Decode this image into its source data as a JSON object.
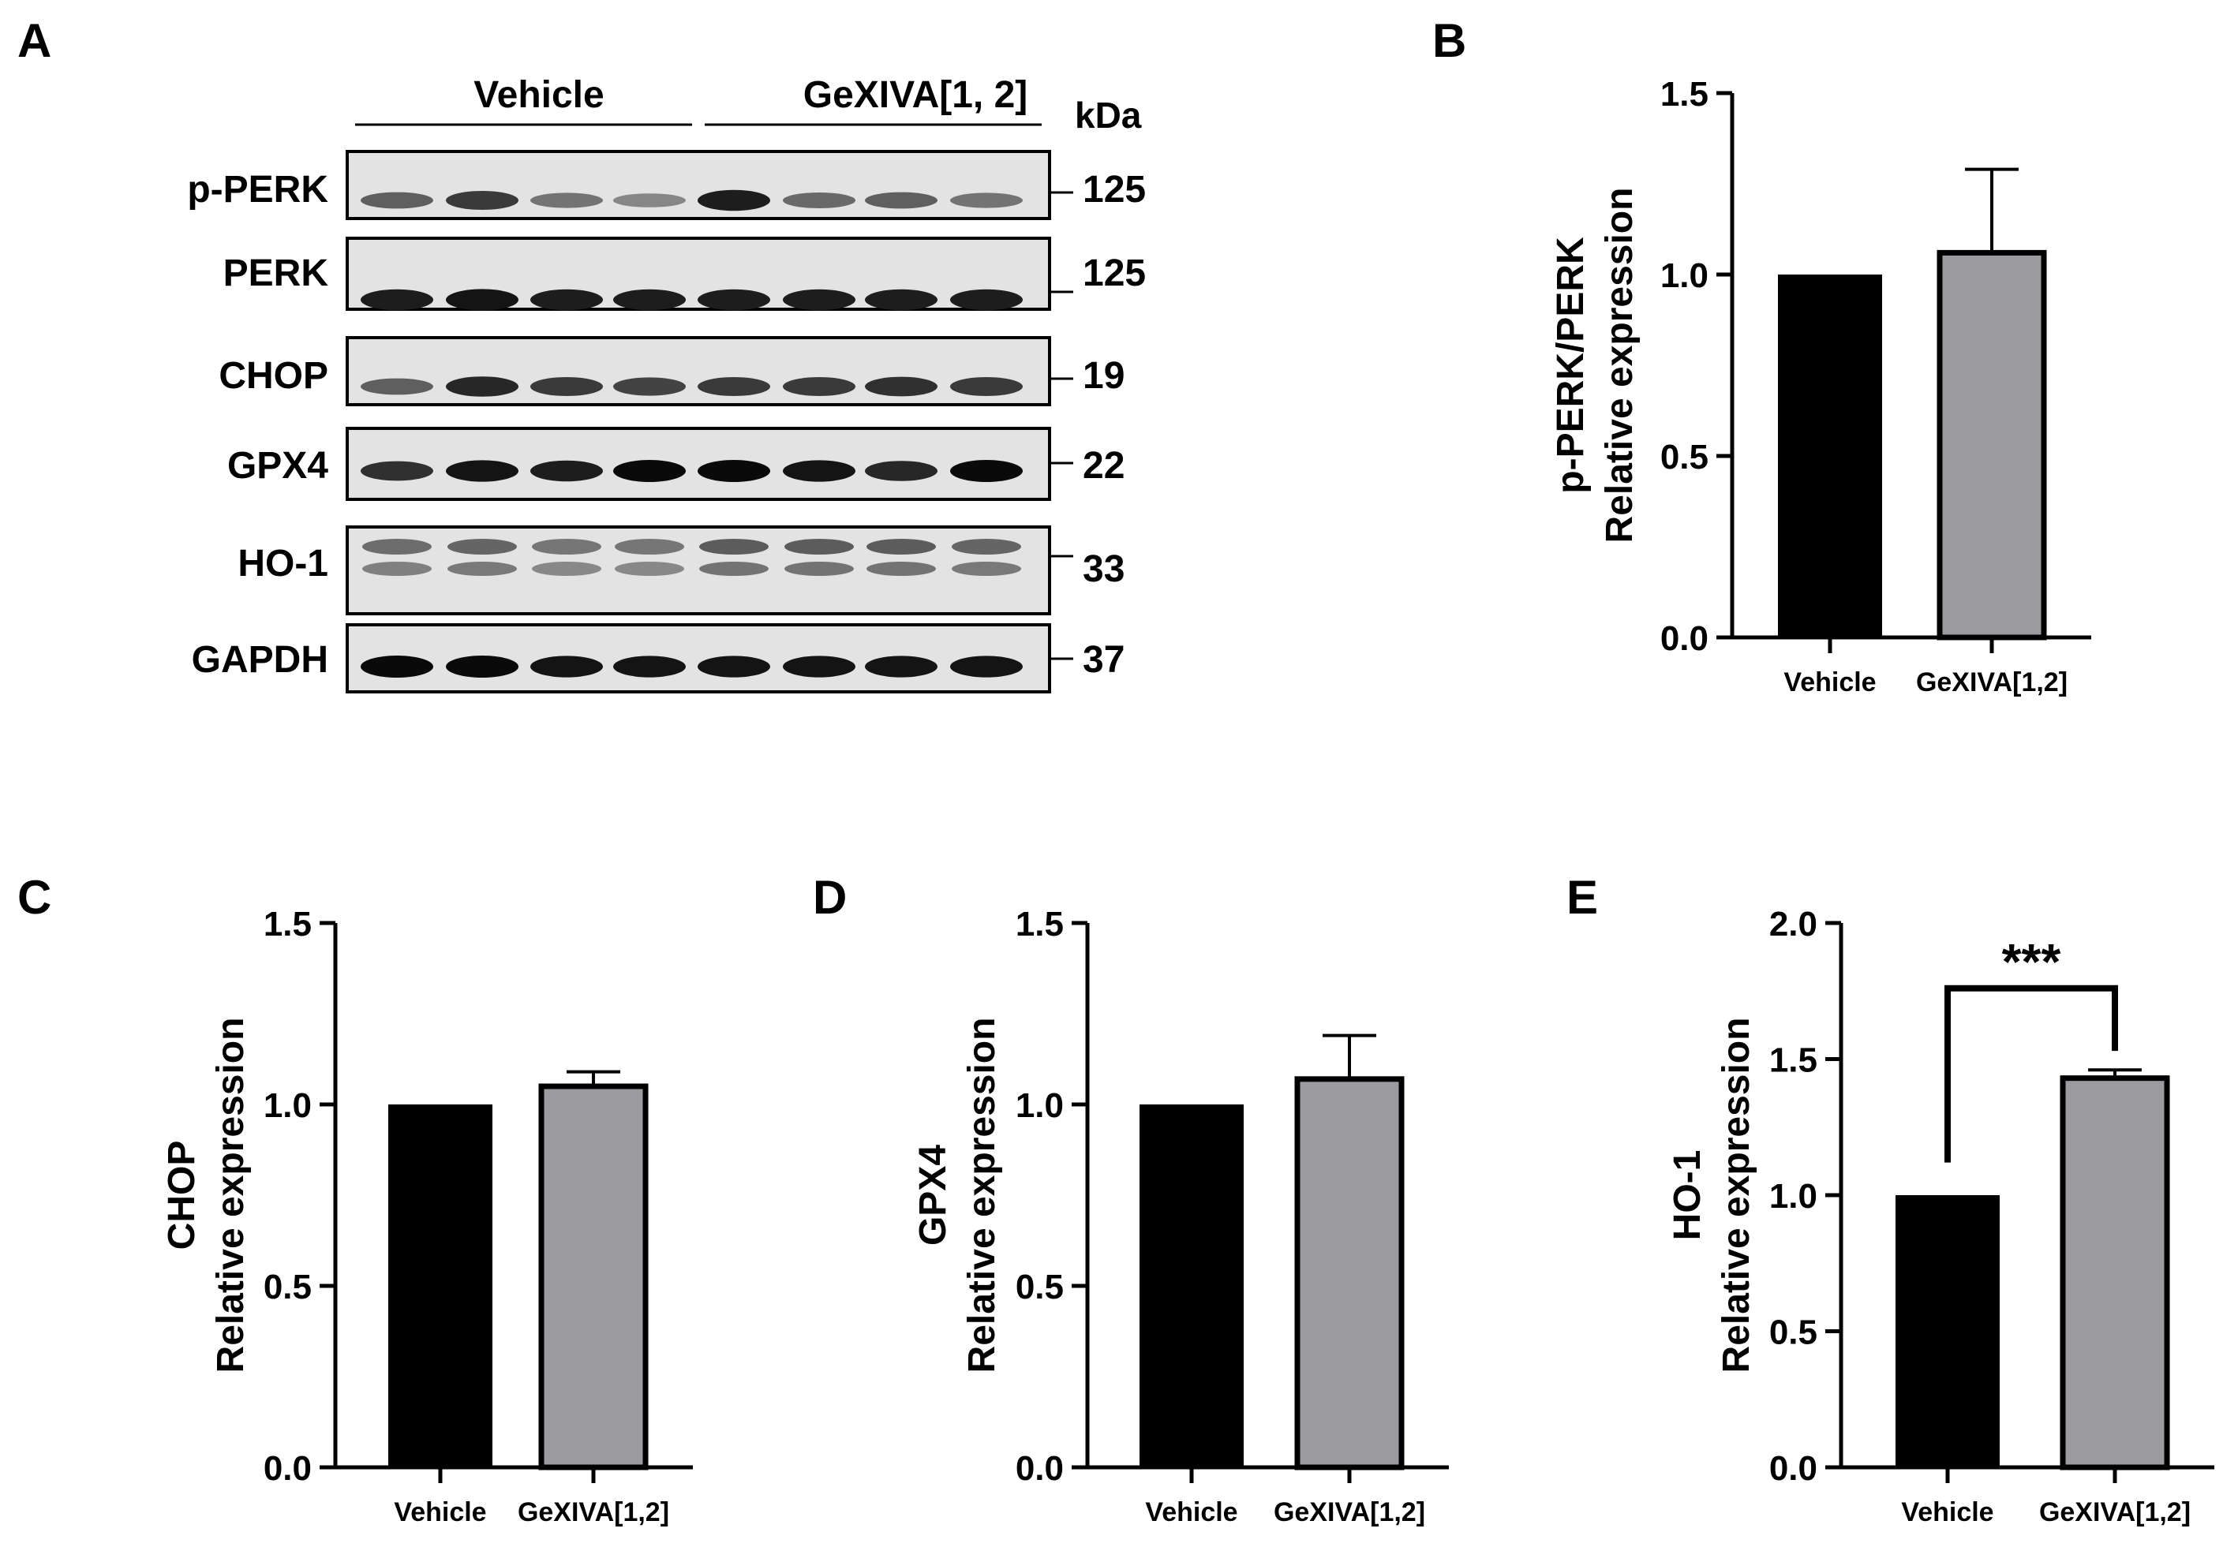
{
  "figure": {
    "panel_labels": [
      "A",
      "B",
      "C",
      "D",
      "E"
    ]
  },
  "western_blot": {
    "groups": [
      "Vehicle",
      "GeXIVA[1, 2]"
    ],
    "mw_unit": "kDa",
    "lanes_per_group": 4,
    "rows": [
      {
        "protein": "p-PERK",
        "mw": "125",
        "intensities": [
          0.55,
          0.75,
          0.45,
          0.35,
          0.9,
          0.5,
          0.55,
          0.45
        ],
        "double": false
      },
      {
        "protein": "PERK",
        "mw": "125",
        "intensities": [
          0.9,
          0.95,
          0.9,
          0.9,
          0.9,
          0.9,
          0.9,
          0.9
        ],
        "double": false
      },
      {
        "protein": "CHOP",
        "mw": "19",
        "intensities": [
          0.55,
          0.85,
          0.75,
          0.7,
          0.75,
          0.75,
          0.8,
          0.75
        ],
        "double": false
      },
      {
        "protein": "GPX4",
        "mw": "22",
        "intensities": [
          0.8,
          0.95,
          0.9,
          1.0,
          1.0,
          0.95,
          0.85,
          1.0
        ],
        "double": false
      },
      {
        "protein": "HO-1",
        "mw": "33",
        "intensities": [
          0.55,
          0.6,
          0.5,
          0.5,
          0.65,
          0.65,
          0.65,
          0.6
        ],
        "double": true
      },
      {
        "protein": "GAPDH",
        "mw": "37",
        "intensities": [
          1.0,
          1.0,
          0.95,
          0.95,
          0.95,
          0.95,
          0.95,
          0.95
        ],
        "double": false
      }
    ]
  },
  "colors": {
    "vehicle_bar": "#000000",
    "treatment_bar": "#9b9ba0",
    "axis": "#000000"
  },
  "chart_data": [
    {
      "panel": "B",
      "type": "bar",
      "categories": [
        "Vehicle",
        "GeXIVA[1,2]"
      ],
      "values": [
        1.0,
        1.06
      ],
      "errors": [
        0,
        0.23
      ],
      "ylabel_line1": "p-PERK/PERK",
      "ylabel_line2": "Relative expression",
      "ylim": [
        0,
        1.5
      ],
      "yticks": [
        "0.0",
        "0.5",
        "1.0",
        "1.5"
      ],
      "significance": ""
    },
    {
      "panel": "C",
      "type": "bar",
      "categories": [
        "Vehicle",
        "GeXIVA[1,2]"
      ],
      "values": [
        1.0,
        1.05
      ],
      "errors": [
        0,
        0.04
      ],
      "ylabel_line1": "CHOP",
      "ylabel_line2": "Relative expression",
      "ylim": [
        0,
        1.5
      ],
      "yticks": [
        "0.0",
        "0.5",
        "1.0",
        "1.5"
      ],
      "significance": ""
    },
    {
      "panel": "D",
      "type": "bar",
      "categories": [
        "Vehicle",
        "GeXIVA[1,2]"
      ],
      "values": [
        1.0,
        1.07
      ],
      "errors": [
        0,
        0.12
      ],
      "ylabel_line1": "GPX4",
      "ylabel_line2": "Relative expression",
      "ylim": [
        0,
        1.5
      ],
      "yticks": [
        "0.0",
        "0.5",
        "1.0",
        "1.5"
      ],
      "significance": ""
    },
    {
      "panel": "E",
      "type": "bar",
      "categories": [
        "Vehicle",
        "GeXIVA[1,2]"
      ],
      "values": [
        1.0,
        1.43
      ],
      "errors": [
        0,
        0.03
      ],
      "ylabel_line1": "HO-1",
      "ylabel_line2": "Relative expression",
      "ylim": [
        0,
        2.0
      ],
      "yticks": [
        "0.0",
        "0.5",
        "1.0",
        "1.5",
        "2.0"
      ],
      "significance": "***"
    }
  ]
}
